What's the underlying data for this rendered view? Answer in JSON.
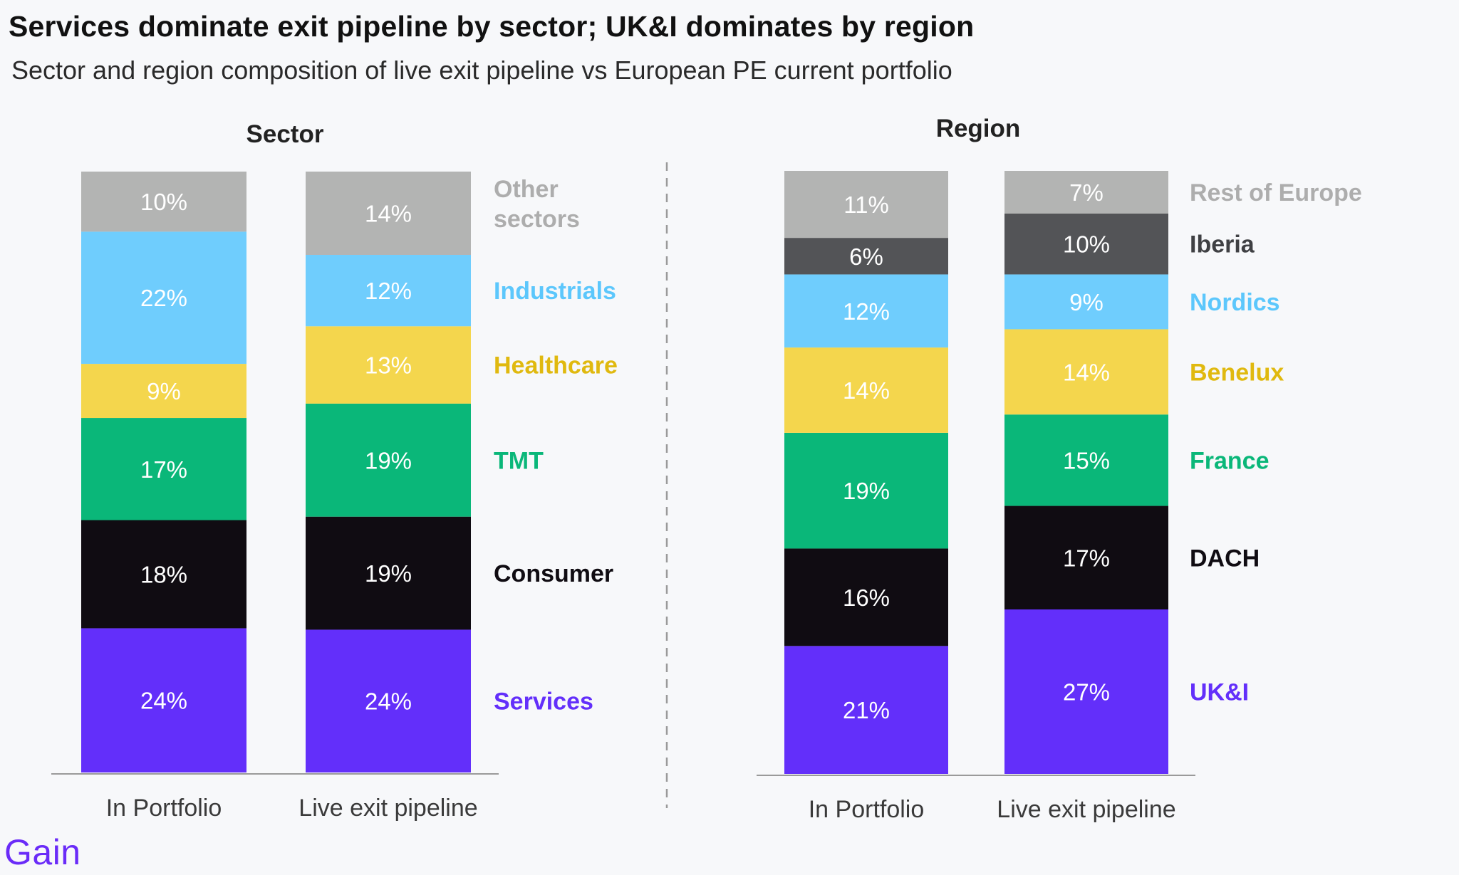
{
  "page": {
    "title": "Services dominate exit pipeline by sector; UK&I dominates by region",
    "subtitle": "Sector and region composition of live exit pipeline vs European PE current portfolio",
    "brand": "Gain"
  },
  "chart_data": [
    {
      "type": "bar",
      "stacked": true,
      "title": "Sector",
      "categories": [
        "In Portfolio",
        "Live exit pipeline"
      ],
      "unit": "%",
      "ylim": [
        0,
        100
      ],
      "grid": false,
      "legend": "right",
      "series": [
        {
          "name": "Services",
          "color": "#632ffa",
          "label_color": "#632ffa",
          "text_color": "#ffffff",
          "values": [
            24,
            24
          ]
        },
        {
          "name": "Consumer",
          "color": "#100c12",
          "label_color": "#100c12",
          "text_color": "#ffffff",
          "values": [
            18,
            19
          ]
        },
        {
          "name": "TMT",
          "color": "#0ab779",
          "label_color": "#0ab779",
          "text_color": "#ffffff",
          "values": [
            17,
            19
          ]
        },
        {
          "name": "Healthcare",
          "color": "#f4d64d",
          "label_color": "#e0b90f",
          "text_color": "#ffffff",
          "values": [
            9,
            13
          ]
        },
        {
          "name": "Industrials",
          "color": "#6fcdfd",
          "label_color": "#5cc7fc",
          "text_color": "#ffffff",
          "values": [
            22,
            12
          ]
        },
        {
          "name": "Other sectors",
          "color": "#b3b4b3",
          "label_color": "#adadad",
          "text_color": "#ffffff",
          "values": [
            10,
            14
          ]
        }
      ]
    },
    {
      "type": "bar",
      "stacked": true,
      "title": "Region",
      "categories": [
        "In Portfolio",
        "Live exit pipeline"
      ],
      "unit": "%",
      "ylim": [
        0,
        100
      ],
      "grid": false,
      "legend": "right",
      "series": [
        {
          "name": "UK&I",
          "color": "#632ffa",
          "label_color": "#632ffa",
          "text_color": "#ffffff",
          "values": [
            21,
            27
          ]
        },
        {
          "name": "DACH",
          "color": "#100c12",
          "label_color": "#100c12",
          "text_color": "#ffffff",
          "values": [
            16,
            17
          ]
        },
        {
          "name": "France",
          "color": "#0ab779",
          "label_color": "#0ab779",
          "text_color": "#ffffff",
          "values": [
            19,
            15
          ]
        },
        {
          "name": "Benelux",
          "color": "#f4d64d",
          "label_color": "#e0b90f",
          "text_color": "#ffffff",
          "values": [
            14,
            14
          ]
        },
        {
          "name": "Nordics",
          "color": "#6fcdfd",
          "label_color": "#5cc7fc",
          "text_color": "#ffffff",
          "values": [
            12,
            9
          ]
        },
        {
          "name": "Iberia",
          "color": "#535457",
          "label_color": "#3f4043",
          "text_color": "#ffffff",
          "values": [
            6,
            10
          ]
        },
        {
          "name": "Rest of Europe",
          "color": "#b3b4b3",
          "label_color": "#adadad",
          "text_color": "#ffffff",
          "values": [
            11,
            7
          ]
        }
      ]
    }
  ]
}
